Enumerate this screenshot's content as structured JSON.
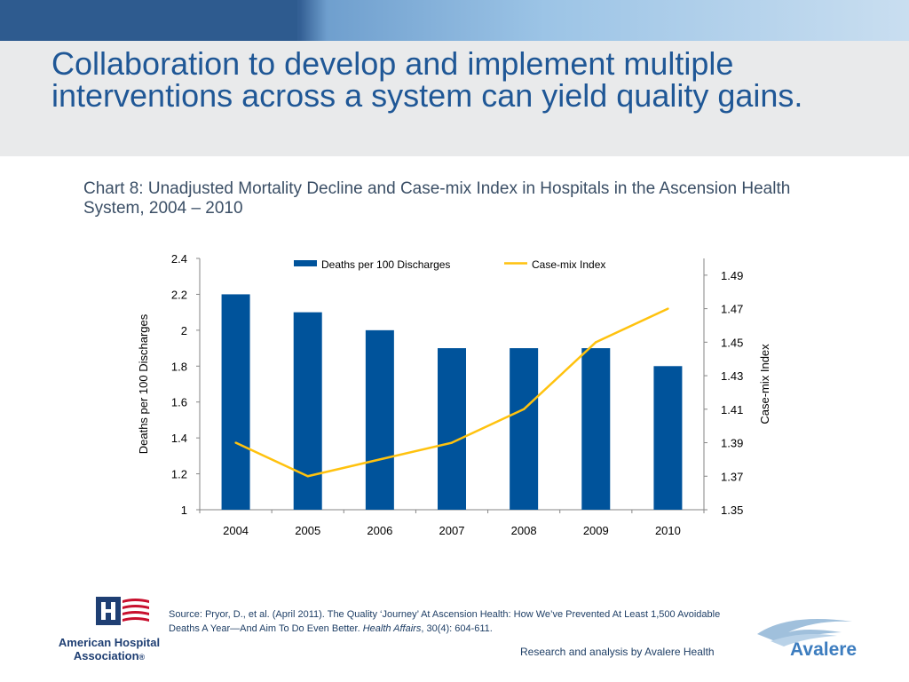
{
  "slide": {
    "title": "Collaboration to develop and implement multiple interventions across a system can yield quality gains.",
    "chart_heading": "Chart 8: Unadjusted Mortality Decline and Case-mix Index in Hospitals in the Ascension Health System, 2004 – 2010",
    "source_part1": "Source: Pryor, D., et al. (April 2011). The Quality ‘Journey’ At Ascension Health: How We’ve Prevented At Least 1,500 Avoidable Deaths A Year—And Aim To Do Even Better. ",
    "source_journal": "Health Affairs",
    "source_part2": ", 30(4): 604-611.",
    "credit": "Research and analysis by Avalere Health",
    "aha_logo_text": "American Hospital Association",
    "aha_logo_mark": "®",
    "avalere_logo_text": "Avalere"
  },
  "colors": {
    "bar": "#00539b",
    "line": "#ffc20e",
    "title": "#1f5796"
  },
  "chart_data": {
    "type": "bar",
    "categories": [
      "2004",
      "2005",
      "2006",
      "2007",
      "2008",
      "2009",
      "2010"
    ],
    "series": [
      {
        "name": "Deaths per 100 Discharges",
        "type": "bar",
        "axis": "left",
        "values": [
          2.2,
          2.1,
          2.0,
          1.9,
          1.9,
          1.9,
          1.8
        ]
      },
      {
        "name": "Case-mix Index",
        "type": "line",
        "axis": "right",
        "values": [
          1.39,
          1.37,
          1.38,
          1.39,
          1.41,
          1.45,
          1.47
        ]
      }
    ],
    "ylabel": "Deaths per 100 Discharges",
    "y2label": "Case-mix Index",
    "ylim": [
      1,
      2.4
    ],
    "yticks": [
      "1",
      "1.2",
      "1.4",
      "1.6",
      "1.8",
      "2",
      "2.2",
      "2.4"
    ],
    "y2lim": [
      1.35,
      1.5
    ],
    "y2ticks": [
      "1.35",
      "1.37",
      "1.39",
      "1.41",
      "1.43",
      "1.45",
      "1.47",
      "1.49"
    ],
    "legend": "top",
    "grid": false
  }
}
